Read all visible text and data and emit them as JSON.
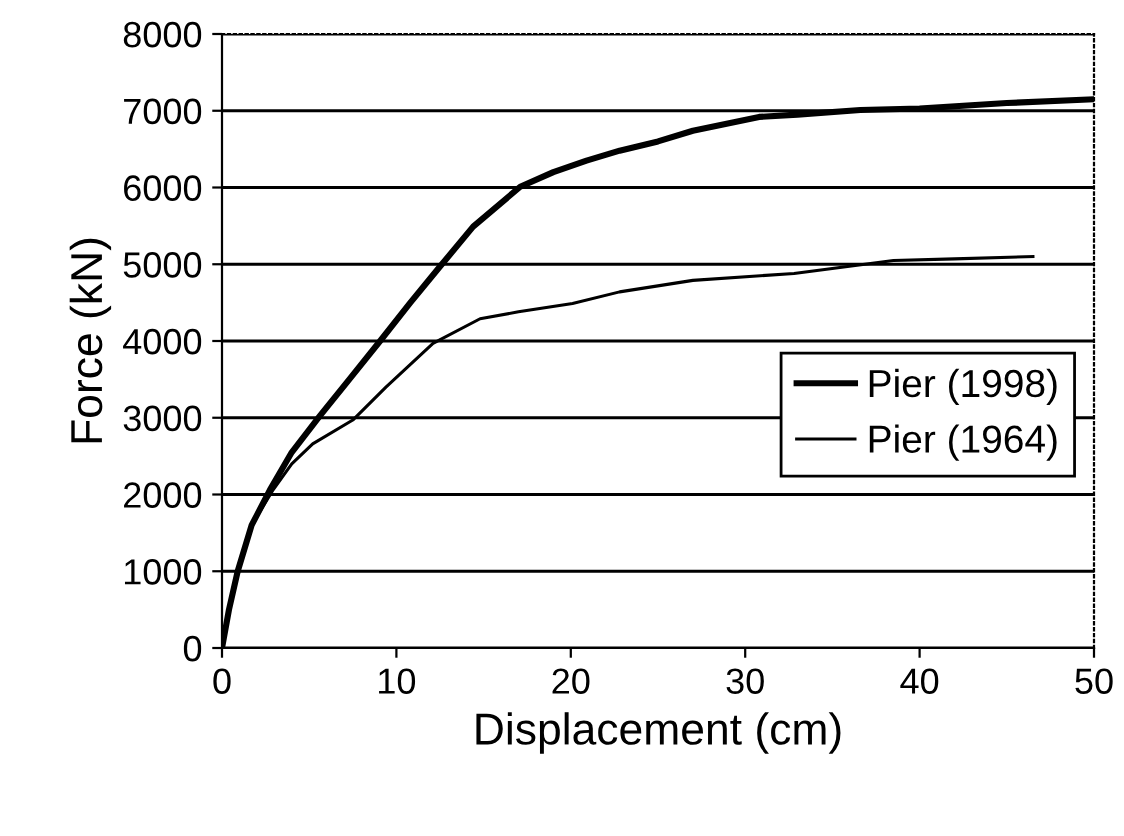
{
  "chart_data": {
    "type": "line",
    "xlabel": "Displacement (cm)",
    "ylabel": "Force (kN)",
    "xlim": [
      0,
      50
    ],
    "xticks": [
      0,
      10,
      20,
      30,
      40,
      50
    ],
    "ylim": [
      0,
      8000
    ],
    "yticks": [
      0,
      1000,
      2000,
      3000,
      4000,
      5000,
      6000,
      7000,
      8000
    ],
    "grid": "y",
    "legend": "right",
    "marker": "none",
    "line_style": "solid",
    "series": [
      {
        "name": "Pier (1998)",
        "color": "#000000",
        "x": [
          0,
          0.4,
          0.9,
          1.7,
          2.75,
          4,
          5.6,
          7.3,
          9.1,
          10.8,
          12.5,
          14.4,
          17.1,
          19,
          20.9,
          22.8,
          25,
          27,
          30.8,
          33,
          36.6,
          40,
          45,
          50
        ],
        "values": [
          0,
          500,
          1000,
          1600,
          2060,
          2550,
          3020,
          3500,
          4010,
          4500,
          4970,
          5490,
          6010,
          6200,
          6350,
          6480,
          6600,
          6740,
          6920,
          6950,
          7010,
          7030,
          7100,
          7150
        ]
      },
      {
        "name": "Pier (1964)",
        "color": "#000000",
        "x": [
          0,
          0.4,
          0.9,
          1.7,
          2.9,
          4,
          5.2,
          7.5,
          9.4,
          12.1,
          14.8,
          17,
          20.1,
          22.8,
          27,
          32.8,
          38.5,
          42,
          46.5
        ],
        "values": [
          0,
          500,
          1000,
          1600,
          2050,
          2400,
          2660,
          2970,
          3400,
          3970,
          4290,
          4380,
          4490,
          4640,
          4790,
          4880,
          5050,
          5070,
          5100
        ]
      }
    ]
  }
}
